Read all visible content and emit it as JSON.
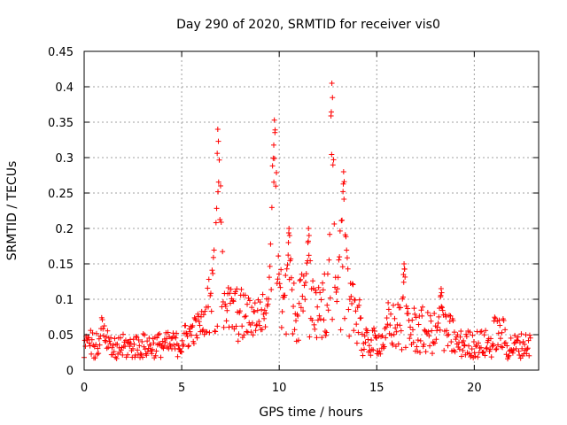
{
  "chart_data": {
    "type": "scatter",
    "title": "Day 290 of 2020, SRMTID for receiver vis0",
    "xlabel": "GPS time / hours",
    "ylabel": "SRMTID / TECUs",
    "xlim": [
      0,
      23.3
    ],
    "ylim": [
      0,
      0.45
    ],
    "xticks": [
      0,
      5,
      10,
      15,
      20
    ],
    "xtick_labels": [
      "0",
      "5",
      "10",
      "15",
      "20"
    ],
    "yticks": [
      0,
      0.05,
      0.1,
      0.15,
      0.2,
      0.25,
      0.3,
      0.35,
      0.4,
      0.45
    ],
    "ytick_labels": [
      "0",
      "0.05",
      "0.1",
      "0.15",
      "0.2",
      "0.25",
      "0.3",
      "0.35",
      "0.4",
      "0.45"
    ],
    "grid": true,
    "marker": "+",
    "marker_color": "#ff0000",
    "series": [
      {
        "name": "vis0",
        "sampling_hours": 0.0333,
        "x_start": 0.0,
        "x_end": 22.9,
        "baseline_segments": [
          {
            "x": [
              0.0,
              0.8
            ],
            "y": [
              0.035,
              0.035
            ],
            "spread": 0.02
          },
          {
            "x": [
              0.8,
              1.3
            ],
            "y": [
              0.06,
              0.04
            ],
            "spread": 0.018
          },
          {
            "x": [
              1.3,
              5.0
            ],
            "y": [
              0.03,
              0.035
            ],
            "spread": 0.018
          },
          {
            "x": [
              5.0,
              6.3
            ],
            "y": [
              0.04,
              0.07
            ],
            "spread": 0.02
          },
          {
            "x": [
              6.3,
              8.3
            ],
            "y": [
              0.09,
              0.07
            ],
            "spread": 0.04
          },
          {
            "x": [
              8.3,
              9.5
            ],
            "y": [
              0.07,
              0.08
            ],
            "spread": 0.03
          },
          {
            "x": [
              9.5,
              11.0
            ],
            "y": [
              0.1,
              0.08
            ],
            "spread": 0.05
          },
          {
            "x": [
              11.0,
              12.5
            ],
            "y": [
              0.08,
              0.09
            ],
            "spread": 0.05
          },
          {
            "x": [
              12.5,
              14.2
            ],
            "y": [
              0.1,
              0.08
            ],
            "spread": 0.05
          },
          {
            "x": [
              14.2,
              15.5
            ],
            "y": [
              0.035,
              0.04
            ],
            "spread": 0.02
          },
          {
            "x": [
              15.5,
              17.5
            ],
            "y": [
              0.06,
              0.05
            ],
            "spread": 0.035
          },
          {
            "x": [
              17.5,
              19.0
            ],
            "y": [
              0.05,
              0.045
            ],
            "spread": 0.03
          },
          {
            "x": [
              19.0,
              21.0
            ],
            "y": [
              0.035,
              0.035
            ],
            "spread": 0.02
          },
          {
            "x": [
              21.0,
              21.6
            ],
            "y": [
              0.05,
              0.045
            ],
            "spread": 0.025
          },
          {
            "x": [
              21.6,
              22.9
            ],
            "y": [
              0.03,
              0.035
            ],
            "spread": 0.018
          }
        ],
        "peaks": [
          {
            "x_center": 6.85,
            "x_width": 0.35,
            "y_max": 0.34
          },
          {
            "x_center": 9.75,
            "x_width": 0.3,
            "y_max": 0.353
          },
          {
            "x_center": 12.7,
            "x_width": 0.2,
            "y_max": 0.405
          },
          {
            "x_center": 13.3,
            "x_width": 0.35,
            "y_max": 0.28
          },
          {
            "x_center": 10.5,
            "x_width": 0.2,
            "y_max": 0.2
          },
          {
            "x_center": 11.5,
            "x_width": 0.2,
            "y_max": 0.2
          },
          {
            "x_center": 16.4,
            "x_width": 0.2,
            "y_max": 0.15
          },
          {
            "x_center": 18.3,
            "x_width": 0.2,
            "y_max": 0.115
          }
        ]
      }
    ]
  }
}
